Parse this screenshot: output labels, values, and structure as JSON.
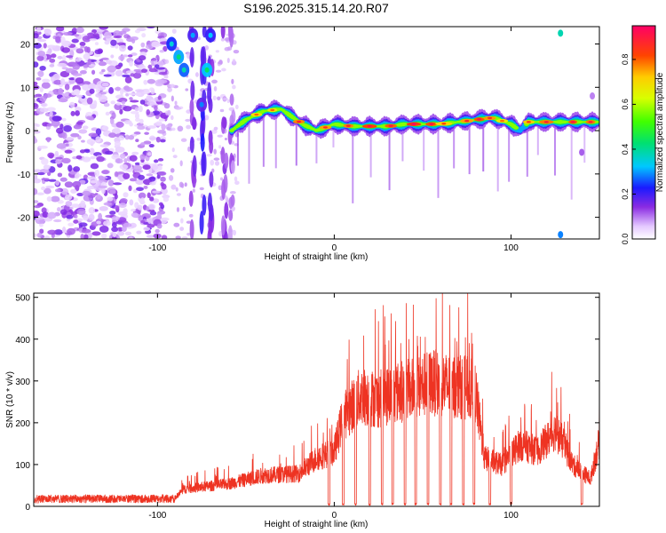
{
  "chart_data": [
    {
      "type": "heatmap",
      "title": "S196.2025.315.14.20.R07",
      "xlabel": "Height of straight line (km)",
      "ylabel": "Frequency (Hz)",
      "xlim": [
        -170,
        150
      ],
      "ylim": [
        -25,
        24
      ],
      "xticks": [
        -100,
        0,
        100
      ],
      "yticks": [
        -20,
        -10,
        0,
        10,
        20
      ],
      "colorbar": {
        "label": "Normalized spectral amplitude",
        "ticks": [
          "0.0",
          "0.2",
          "0.4",
          "0.6",
          "0.8"
        ],
        "range": [
          0,
          0.95
        ]
      },
      "ridge": {
        "description_points": [
          [
            -58,
            0
          ],
          [
            -50,
            2.5
          ],
          [
            -40,
            4.5
          ],
          [
            -30,
            5
          ],
          [
            -25,
            3.5
          ],
          [
            -18,
            1.5
          ],
          [
            -10,
            0
          ],
          [
            0,
            1.5
          ],
          [
            10,
            1
          ],
          [
            20,
            1
          ],
          [
            30,
            1
          ],
          [
            40,
            1.5
          ],
          [
            50,
            1.5
          ],
          [
            60,
            1.5
          ],
          [
            70,
            2
          ],
          [
            80,
            2.5
          ],
          [
            90,
            3
          ],
          [
            100,
            1.5
          ],
          [
            105,
            0
          ],
          [
            110,
            2
          ],
          [
            125,
            2
          ],
          [
            130,
            2
          ],
          [
            150,
            2
          ]
        ]
      }
    },
    {
      "type": "line",
      "title": "",
      "xlabel": "Height of straight line (km)",
      "ylabel": "SNR (10 * v/v)",
      "xlim": [
        -170,
        150
      ],
      "ylim": [
        0,
        510
      ],
      "xticks": [
        -100,
        0,
        100
      ],
      "yticks": [
        0,
        100,
        200,
        300,
        400,
        500
      ],
      "color": "#ee3322",
      "envelope": [
        [
          -170,
          18
        ],
        [
          -120,
          20
        ],
        [
          -90,
          25
        ],
        [
          -85,
          50
        ],
        [
          -60,
          65
        ],
        [
          -40,
          90
        ],
        [
          -20,
          95
        ],
        [
          -10,
          140
        ],
        [
          0,
          160
        ],
        [
          5,
          260
        ],
        [
          15,
          320
        ],
        [
          25,
          310
        ],
        [
          35,
          330
        ],
        [
          45,
          340
        ],
        [
          55,
          360
        ],
        [
          65,
          350
        ],
        [
          75,
          345
        ],
        [
          80,
          330
        ],
        [
          85,
          140
        ],
        [
          95,
          120
        ],
        [
          105,
          180
        ],
        [
          115,
          160
        ],
        [
          125,
          220
        ],
        [
          130,
          180
        ],
        [
          135,
          120
        ],
        [
          145,
          80
        ],
        [
          150,
          190
        ]
      ],
      "drops_to_zero_at": [
        -3,
        5,
        12,
        20,
        27,
        33,
        40,
        46,
        53,
        60,
        66,
        73,
        79,
        88,
        100,
        140
      ]
    }
  ]
}
